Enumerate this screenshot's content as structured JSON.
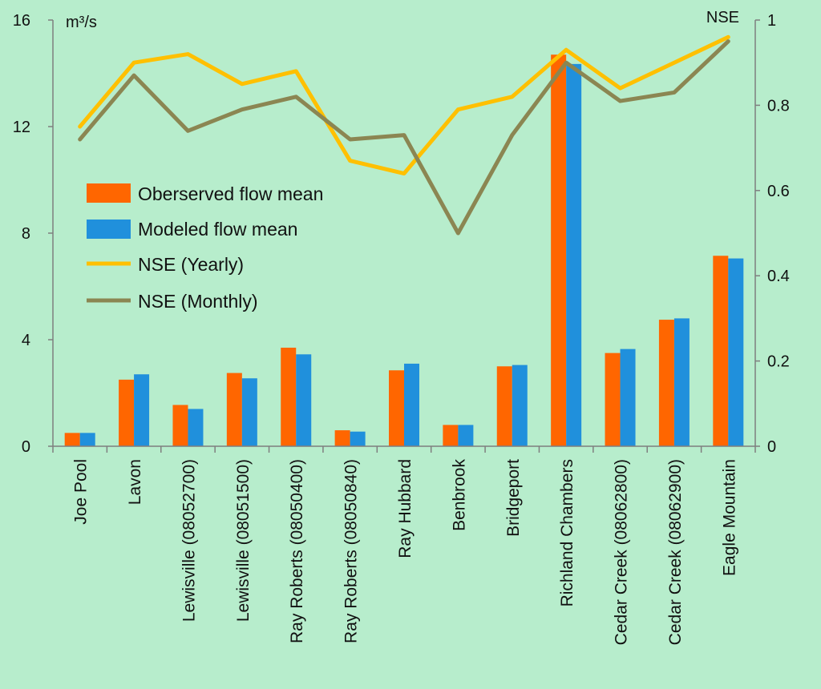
{
  "chart_data": {
    "type": "bar",
    "categories": [
      "Joe Pool",
      "Lavon",
      "Lewisville (08052700)",
      "Lewisville (08051500)",
      "Ray Roberts (08050400)",
      "Ray Roberts (08050840)",
      "Ray Hubbard",
      "Benbrook",
      "Bridgeport",
      "Richland Chambers",
      "Cedar Creek (08062800)",
      "Cedar Creek (08062900)",
      "Eagle Mountain"
    ],
    "series": [
      {
        "name": "Oberserved flow mean",
        "type": "bar",
        "axis": "left",
        "color": "#ff6600",
        "values": [
          0.5,
          2.5,
          1.55,
          2.75,
          3.7,
          0.6,
          2.85,
          0.8,
          3.0,
          14.7,
          3.5,
          4.75,
          7.15
        ]
      },
      {
        "name": "Modeled flow mean",
        "type": "bar",
        "axis": "left",
        "color": "#2090dc",
        "values": [
          0.5,
          2.7,
          1.4,
          2.55,
          3.45,
          0.55,
          3.1,
          0.8,
          3.05,
          14.35,
          3.65,
          4.8,
          7.05
        ]
      },
      {
        "name": "NSE (Yearly)",
        "type": "line",
        "axis": "right",
        "color": "#ffc000",
        "values": [
          0.75,
          0.9,
          0.92,
          0.85,
          0.88,
          0.67,
          0.64,
          0.79,
          0.82,
          0.93,
          0.84,
          0.9,
          0.96
        ]
      },
      {
        "name": "NSE (Monthly)",
        "type": "line",
        "axis": "right",
        "color": "#8b8652",
        "values": [
          0.72,
          0.87,
          0.74,
          0.79,
          0.82,
          0.72,
          0.73,
          0.5,
          0.73,
          0.9,
          0.81,
          0.83,
          0.95
        ]
      }
    ],
    "left_axis": {
      "label": "m³/s",
      "ylim": [
        0,
        16
      ],
      "ticks": [
        "0",
        "4",
        "8",
        "12",
        "16"
      ]
    },
    "right_axis": {
      "label": "NSE",
      "ylim": [
        0,
        1
      ],
      "ticks": [
        "0",
        "0.2",
        "0.4",
        "0.6",
        "0.8",
        "1"
      ]
    },
    "legend_position": "middle-left",
    "grid": false
  }
}
